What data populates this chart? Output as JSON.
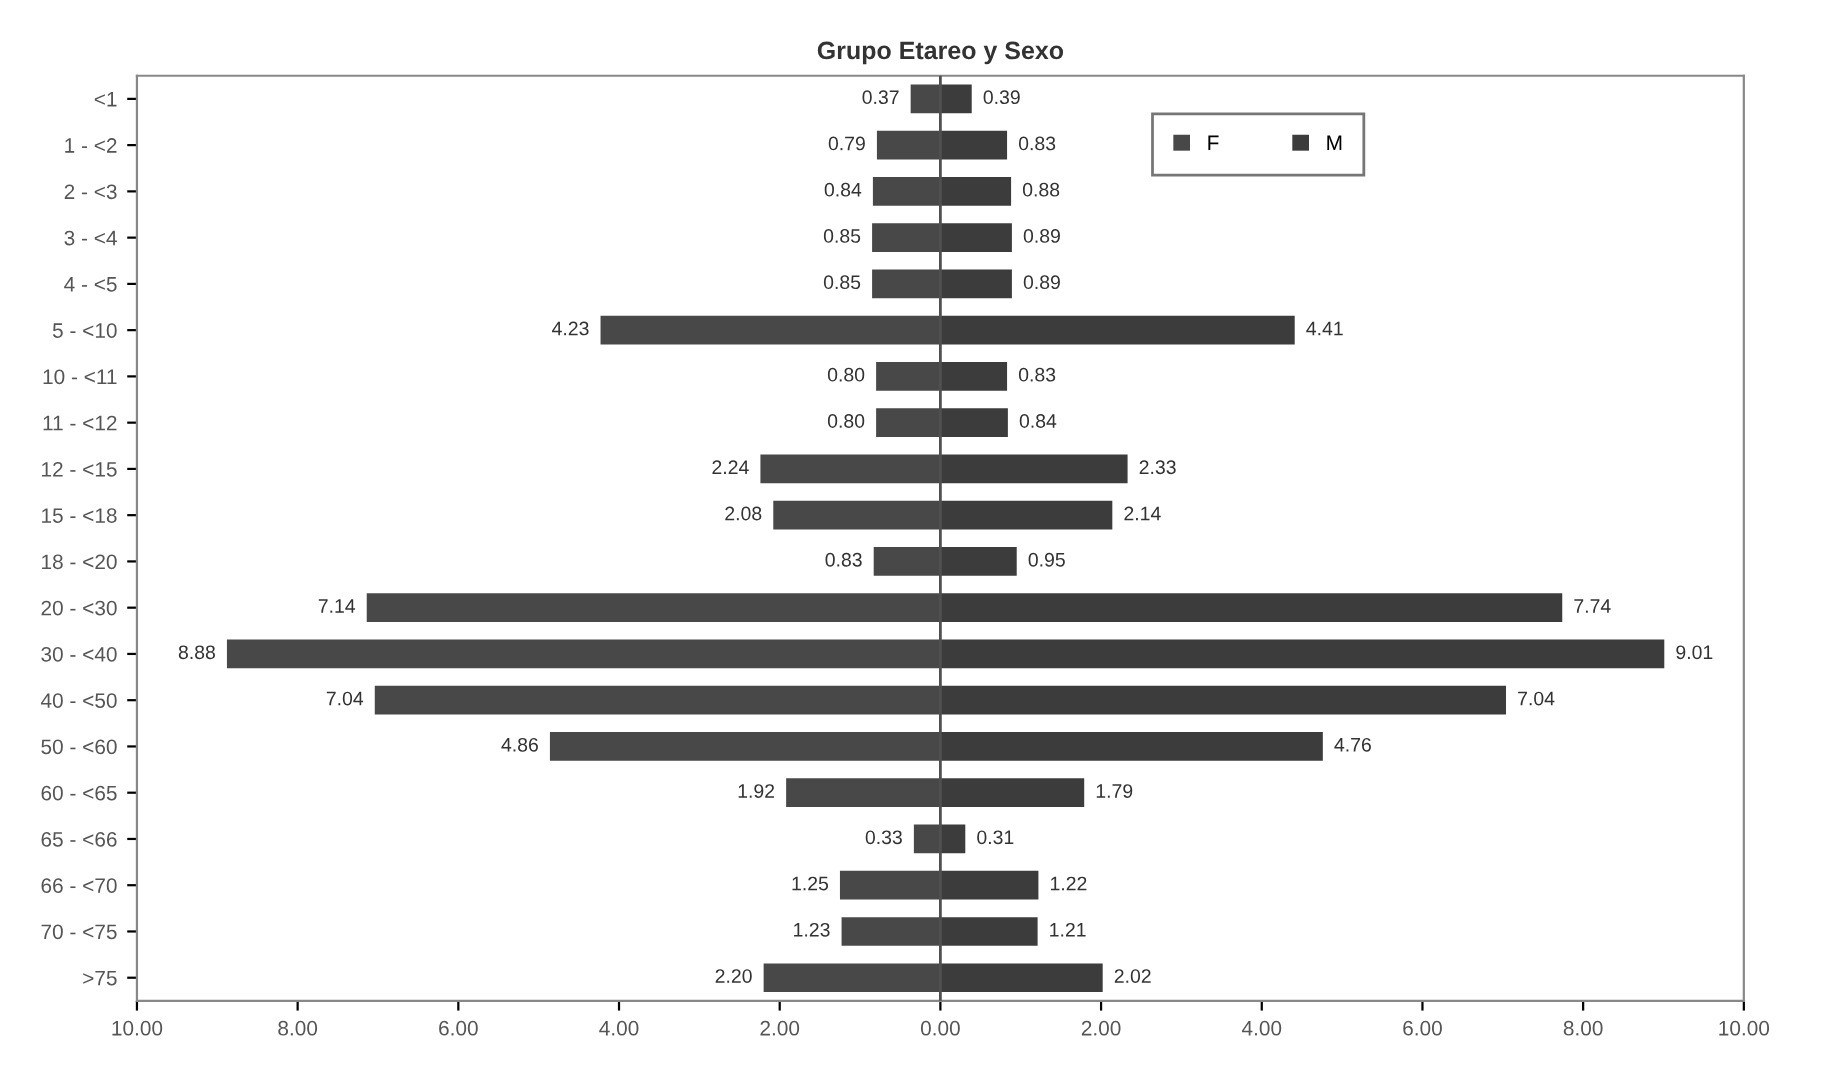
{
  "chart_data": {
    "type": "bar",
    "title": "Grupo Etareo y Sexo",
    "orientation": "horizontal",
    "categories": [
      "<1",
      "1 - <2",
      "2 - <3",
      "3 - <4",
      "4 - <5",
      "5 - <10",
      "10 - <11",
      "11 - <12",
      "12 - <15",
      "15 - <18",
      "18 - <20",
      "20 - <30",
      "30 - <40",
      "40 - <50",
      "50 - <60",
      "60 - <65",
      "65 - <66",
      "66 - <70",
      "70 - <75",
      ">75"
    ],
    "series": [
      {
        "name": "F",
        "color": "#484848",
        "values": [
          0.37,
          0.79,
          0.84,
          0.85,
          0.85,
          4.23,
          0.8,
          0.8,
          2.24,
          2.08,
          0.83,
          7.14,
          8.88,
          7.04,
          4.86,
          1.92,
          0.33,
          1.25,
          1.23,
          2.2
        ],
        "base": [
          -0.37,
          -0.79,
          -0.84,
          -0.85,
          -0.85,
          -4.23,
          -0.8,
          -0.8,
          -2.24,
          -2.08,
          -0.83,
          -7.14,
          -8.88,
          -7.04,
          -4.86,
          -1.92,
          -0.33,
          -1.25,
          -1.23,
          -2.2
        ],
        "value_labels": [
          "0.37",
          "0.79",
          "0.84",
          "0.85",
          "0.85",
          "4.23",
          "0.80",
          "0.80",
          "2.24",
          "2.08",
          "0.83",
          "7.14",
          "8.88",
          "7.04",
          "4.86",
          "1.92",
          "0.33",
          "1.25",
          "1.23",
          "2.20"
        ]
      },
      {
        "name": "M",
        "color": "#3c3c3c",
        "values": [
          0.39,
          0.83,
          0.88,
          0.89,
          0.89,
          4.41,
          0.83,
          0.84,
          2.33,
          2.14,
          0.95,
          7.74,
          9.01,
          7.04,
          4.76,
          1.79,
          0.31,
          1.22,
          1.21,
          2.02
        ],
        "value_labels": [
          "0.39",
          "0.83",
          "0.88",
          "0.89",
          "0.89",
          "4.41",
          "0.83",
          "0.84",
          "2.33",
          "2.14",
          "0.95",
          "7.74",
          "9.01",
          "7.04",
          "4.76",
          "1.79",
          "0.31",
          "1.22",
          "1.21",
          "2.02"
        ]
      }
    ],
    "xlim": [
      -10,
      10
    ],
    "xticks": [
      {
        "value": -10,
        "label": "10.00"
      },
      {
        "value": -8,
        "label": "8.00"
      },
      {
        "value": -6,
        "label": "6.00"
      },
      {
        "value": -4,
        "label": "4.00"
      },
      {
        "value": -2,
        "label": "2.00"
      },
      {
        "value": 0,
        "label": "0.00"
      },
      {
        "value": 2,
        "label": "2.00"
      },
      {
        "value": 4,
        "label": "4.00"
      },
      {
        "value": 6,
        "label": "6.00"
      },
      {
        "value": 8,
        "label": "8.00"
      },
      {
        "value": 10,
        "label": "10.00"
      }
    ],
    "ref_lines": [
      {
        "axis": "x",
        "value": 0,
        "label": null,
        "color": "#505050"
      }
    ],
    "legend": "top right",
    "grid": false
  }
}
